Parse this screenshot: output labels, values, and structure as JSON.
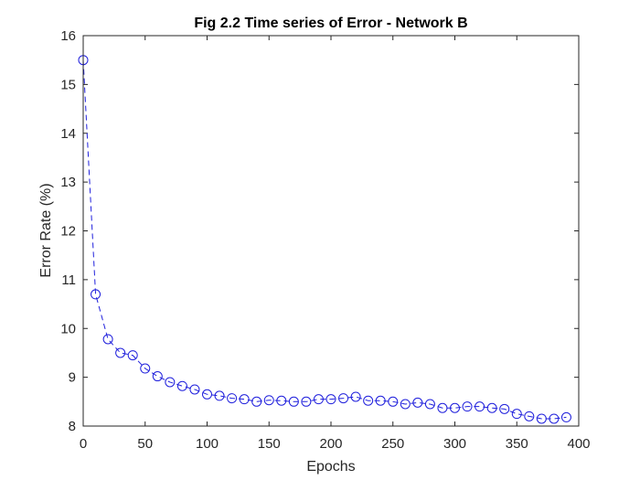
{
  "chart_data": {
    "type": "line",
    "title": "Fig 2.2 Time series of Error - Network B",
    "xlabel": "Epochs",
    "ylabel": "Error Rate (%)",
    "xlim": [
      0,
      400
    ],
    "ylim": [
      8,
      16
    ],
    "xticks": [
      0,
      50,
      100,
      150,
      200,
      250,
      300,
      350,
      400
    ],
    "yticks": [
      8,
      9,
      10,
      11,
      12,
      13,
      14,
      15,
      16
    ],
    "grid": false,
    "legend": "none",
    "line_style": "dashed",
    "marker": "circle",
    "color": "#1f1fdc",
    "series": [
      {
        "x": [
          0,
          10,
          20,
          30,
          40,
          50,
          60,
          70,
          80,
          90,
          100,
          110,
          120,
          130,
          140,
          150,
          160,
          170,
          180,
          190,
          200,
          210,
          220,
          230,
          240,
          250,
          260,
          270,
          280,
          290,
          300,
          310,
          320,
          330,
          340,
          350,
          360,
          370,
          380,
          390
        ],
        "values": [
          15.5,
          10.7,
          9.78,
          9.5,
          9.45,
          9.18,
          9.02,
          8.9,
          8.82,
          8.75,
          8.65,
          8.62,
          8.57,
          8.55,
          8.5,
          8.53,
          8.52,
          8.5,
          8.5,
          8.55,
          8.55,
          8.57,
          8.6,
          8.52,
          8.52,
          8.5,
          8.45,
          8.48,
          8.45,
          8.37,
          8.37,
          8.4,
          8.4,
          8.37,
          8.35,
          8.25,
          8.2,
          8.15,
          8.15,
          8.18
        ]
      }
    ]
  }
}
